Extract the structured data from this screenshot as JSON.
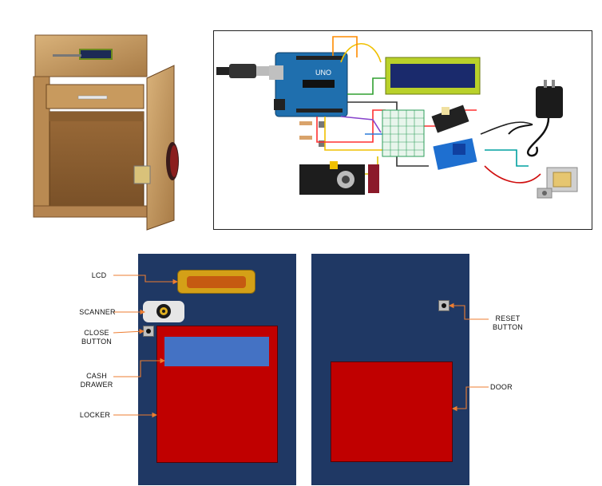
{
  "labels": {
    "lcd": "LCD",
    "scanner": "SCANNER",
    "close_button_line1": "CLOSE",
    "close_button_line2": "BUTTON",
    "cash_drawer_line1": "CASH",
    "cash_drawer_line2": "DRAWER",
    "locker": "LOCKER",
    "reset_button_line1": "RESET",
    "reset_button_line2": "BUTTON",
    "door": "DOOR",
    "arduino_board": "UNO"
  },
  "colors": {
    "panel_navy": "#1f3864",
    "locker_red": "#c00000",
    "drawer_blue": "#4472c4",
    "lcd_gold": "#d4a017",
    "lcd_orange": "#c55a11",
    "leader_orange": "#ed7d31",
    "arduino_blue": "#1f6fae",
    "lcd_module_green": "#b9d12a",
    "lcd_screen": "#1a2a6c",
    "relay_blue": "#1e6fd0",
    "breadboard_green": "#2e9e5b",
    "wood": "#c69a62"
  },
  "icons": {
    "photo": "wooden-cabinet-photo",
    "scanner": "fingerprint-scanner-icon",
    "close_button": "push-button-icon",
    "reset_button": "push-button-icon",
    "power_adapter": "power-adapter-icon",
    "solenoid": "solenoid-lock-icon"
  }
}
